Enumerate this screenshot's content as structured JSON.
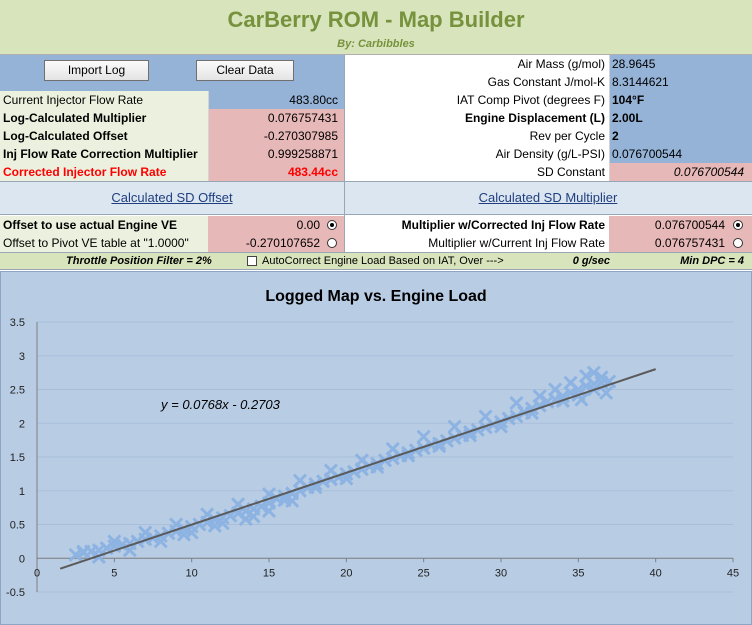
{
  "header": {
    "title": "CarBerry ROM - Map Builder",
    "subtitle": "By: Carbibbles"
  },
  "buttons": {
    "import_log": "Import Log",
    "clear_data": "Clear Data"
  },
  "left_table": {
    "rows": [
      {
        "label": "Current Injector Flow Rate",
        "value": "483.80cc"
      },
      {
        "label": "Log-Calculated Multiplier",
        "value": "0.076757431"
      },
      {
        "label": "Log-Calculated Offset",
        "value": "-0.270307985"
      },
      {
        "label": "Inj Flow Rate Correction Multiplier",
        "value": "0.999258871"
      },
      {
        "label": "Corrected Injector Flow Rate",
        "value": "483.44cc"
      }
    ]
  },
  "right_table": {
    "rows": [
      {
        "label": "Air Mass (g/mol)",
        "value": "28.9645"
      },
      {
        "label": "Gas Constant J/mol-K",
        "value": "8.3144621"
      },
      {
        "label": "IAT Comp Pivot (degrees F)",
        "value": "104°F"
      },
      {
        "label": "Engine Displacement (L)",
        "value": "2.00L"
      },
      {
        "label": "Rev per Cycle",
        "value": "2"
      },
      {
        "label": "Air Density (g/L-PSI)",
        "value": "0.076700544"
      },
      {
        "label": "SD Constant",
        "value": "0.076700544"
      }
    ]
  },
  "sections": {
    "sd_offset": "Calculated SD Offset",
    "sd_multiplier": "Calculated SD Multiplier"
  },
  "offset_options": [
    {
      "label": "Offset to use actual Engine VE",
      "value": "0.00",
      "selected": true
    },
    {
      "label": "Offset to Pivot VE table at \"1.0000\"",
      "value": "-0.270107652",
      "selected": false
    }
  ],
  "multiplier_options": [
    {
      "label": "Multiplier w/Corrected Inj Flow Rate",
      "value": "0.076700544",
      "selected": true
    },
    {
      "label": "Multiplier w/Current Inj Flow Rate",
      "value": "0.076757431",
      "selected": false
    }
  ],
  "filter_bar": {
    "throttle_filter": "Throttle Position Filter =  2%",
    "autocorrect_label": "AutoCorrect Engine Load Based on IAT, Over --->",
    "autocorrect_value": "0 g/sec",
    "min_dpc": "Min DPC =  4"
  },
  "colors": {
    "title_green": "#76923c",
    "header_bg": "#d8e4bc",
    "left_bg": "#ebf1de",
    "blue_cell": "#95b3d7",
    "pink_cell": "#e6b8b7",
    "section_bg": "#dce6f1",
    "chart_bg": "#b8cce4",
    "point_color": "#8db3e2",
    "trend_color": "#5a5a5a"
  },
  "chart_data": {
    "type": "scatter",
    "title": "Logged Map vs. Engine Load",
    "xlabel": "",
    "ylabel": "",
    "xlim": [
      0,
      45
    ],
    "ylim": [
      -0.5,
      3.5
    ],
    "xticks": [
      "0",
      "5",
      "10",
      "15",
      "20",
      "25",
      "30",
      "35",
      "40",
      "45"
    ],
    "yticks": [
      "-0.5",
      "0",
      "0.5",
      "1",
      "1.5",
      "2",
      "2.5",
      "3",
      "3.5"
    ],
    "trendline": {
      "slope": 0.0768,
      "intercept": -0.2703,
      "x_range": [
        1.5,
        40
      ],
      "label": "y = 0.0768x - 0.2703"
    },
    "series": [
      {
        "name": "Logged Map",
        "marker": "x",
        "points": [
          [
            2.5,
            0.05
          ],
          [
            3,
            0.08
          ],
          [
            3.5,
            0.1
          ],
          [
            4,
            0.12
          ],
          [
            4.5,
            0.15
          ],
          [
            5,
            0.18
          ],
          [
            5.5,
            0.2
          ],
          [
            6,
            0.22
          ],
          [
            6.5,
            0.25
          ],
          [
            7,
            0.28
          ],
          [
            7.5,
            0.3
          ],
          [
            8,
            0.33
          ],
          [
            8.5,
            0.37
          ],
          [
            9,
            0.4
          ],
          [
            9.5,
            0.43
          ],
          [
            10,
            0.47
          ],
          [
            10.5,
            0.5
          ],
          [
            11,
            0.53
          ],
          [
            11.5,
            0.57
          ],
          [
            12,
            0.6
          ],
          [
            12.5,
            0.63
          ],
          [
            13,
            0.67
          ],
          [
            13.5,
            0.7
          ],
          [
            14,
            0.73
          ],
          [
            14.5,
            0.77
          ],
          [
            15,
            0.82
          ],
          [
            15.5,
            0.88
          ],
          [
            16,
            0.92
          ],
          [
            16.5,
            0.96
          ],
          [
            17,
            1.0
          ],
          [
            17.5,
            1.05
          ],
          [
            18,
            1.1
          ],
          [
            18.5,
            1.14
          ],
          [
            19,
            1.17
          ],
          [
            19.5,
            1.2
          ],
          [
            20,
            1.25
          ],
          [
            20.5,
            1.28
          ],
          [
            21,
            1.32
          ],
          [
            21.5,
            1.36
          ],
          [
            22,
            1.4
          ],
          [
            22.5,
            1.45
          ],
          [
            23,
            1.48
          ],
          [
            23.5,
            1.52
          ],
          [
            24,
            1.56
          ],
          [
            24.5,
            1.6
          ],
          [
            25,
            1.63
          ],
          [
            25.5,
            1.68
          ],
          [
            26,
            1.7
          ],
          [
            26.5,
            1.74
          ],
          [
            27,
            1.78
          ],
          [
            27.5,
            1.82
          ],
          [
            28,
            1.87
          ],
          [
            28.5,
            1.9
          ],
          [
            29,
            1.94
          ],
          [
            29.5,
            1.98
          ],
          [
            30,
            2.02
          ],
          [
            30.5,
            2.07
          ],
          [
            31,
            2.1
          ],
          [
            31.5,
            2.16
          ],
          [
            32,
            2.22
          ],
          [
            32.5,
            2.26
          ],
          [
            33,
            2.32
          ],
          [
            33.5,
            2.35
          ],
          [
            34,
            2.4
          ],
          [
            34.5,
            2.45
          ],
          [
            35,
            2.5
          ],
          [
            35.5,
            2.55
          ],
          [
            36,
            2.58
          ],
          [
            36.5,
            2.6
          ],
          [
            37,
            2.62
          ],
          [
            4,
            0.02
          ],
          [
            6,
            0.12
          ],
          [
            8,
            0.25
          ],
          [
            10,
            0.38
          ],
          [
            12,
            0.52
          ],
          [
            14,
            0.62
          ],
          [
            15,
            0.7
          ],
          [
            16,
            0.86
          ],
          [
            18,
            1.05
          ],
          [
            20,
            1.18
          ],
          [
            22,
            1.35
          ],
          [
            24,
            1.52
          ],
          [
            26,
            1.66
          ],
          [
            28,
            1.82
          ],
          [
            30,
            1.95
          ],
          [
            32,
            2.15
          ],
          [
            34,
            2.33
          ],
          [
            35,
            2.42
          ],
          [
            36,
            2.5
          ],
          [
            36.5,
            2.68
          ],
          [
            35.5,
            2.7
          ],
          [
            34.5,
            2.6
          ],
          [
            33.5,
            2.5
          ],
          [
            32.5,
            2.4
          ],
          [
            31,
            2.3
          ],
          [
            29,
            2.1
          ],
          [
            27,
            1.95
          ],
          [
            25,
            1.8
          ],
          [
            23,
            1.62
          ],
          [
            21,
            1.45
          ],
          [
            19,
            1.3
          ],
          [
            17,
            1.15
          ],
          [
            15,
            0.95
          ],
          [
            13,
            0.8
          ],
          [
            11,
            0.65
          ],
          [
            9,
            0.5
          ],
          [
            7,
            0.38
          ],
          [
            5,
            0.25
          ],
          [
            3,
            0.1
          ],
          [
            9.5,
            0.35
          ],
          [
            11.5,
            0.48
          ],
          [
            13.5,
            0.58
          ],
          [
            16.5,
            0.85
          ],
          [
            36,
            2.75
          ],
          [
            36.8,
            2.45
          ],
          [
            35.2,
            2.35
          ]
        ]
      }
    ]
  }
}
